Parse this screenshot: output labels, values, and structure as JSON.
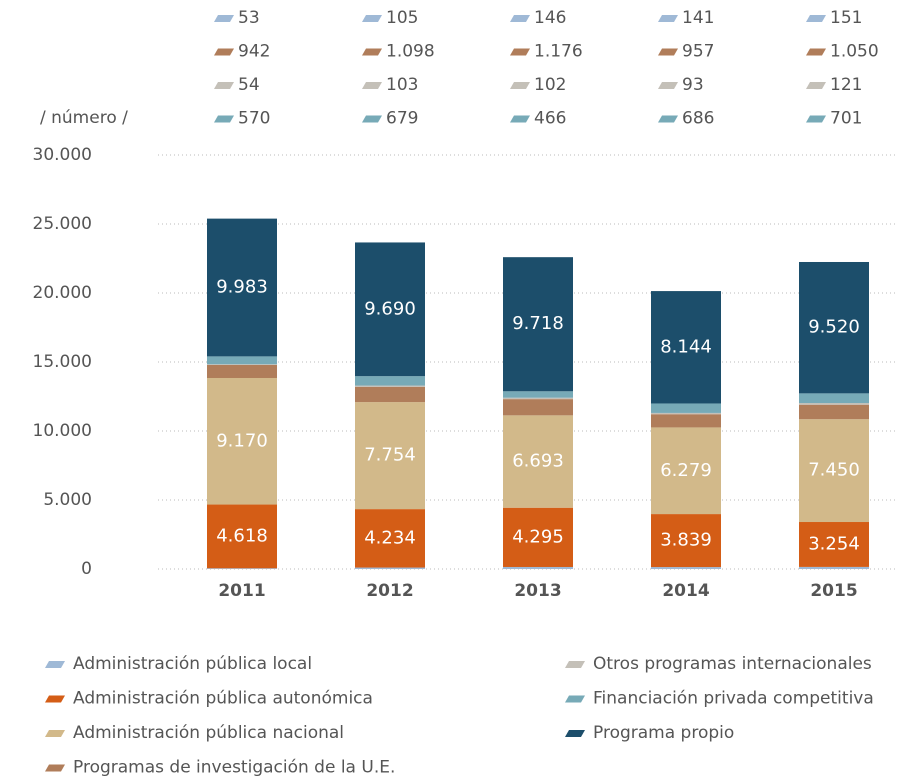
{
  "chart_data": {
    "type": "stacked_bar",
    "y_label": "/ número /",
    "categories": [
      "2011",
      "2012",
      "2013",
      "2014",
      "2015"
    ],
    "ylim": [
      0,
      30000
    ],
    "yticks": [
      0,
      {
        "value": 5000,
        "label": "5.000"
      },
      {
        "value": 10000,
        "label": "10.000"
      },
      {
        "value": 15000,
        "label": "15.000"
      },
      {
        "value": 20000,
        "label": "20.000"
      },
      {
        "value": 25000,
        "label": "25.000"
      },
      {
        "value": 30000,
        "label": "30.000"
      }
    ],
    "grid": true,
    "series": [
      {
        "name": "Administración pública local",
        "color": "#9fb9d6",
        "values": [
          53,
          105,
          146,
          141,
          151
        ],
        "value_labels": [
          "53",
          "105",
          "146",
          "141",
          "151"
        ]
      },
      {
        "name": "Administración pública autonómica",
        "color": "#d45d16",
        "values": [
          4618,
          4234,
          4295,
          3839,
          3254
        ],
        "value_labels": [
          "4.618",
          "4.234",
          "4.295",
          "3.839",
          "3.254"
        ]
      },
      {
        "name": "Administración pública nacional",
        "color": "#d2b98a",
        "values": [
          9170,
          7754,
          6693,
          6279,
          7450
        ],
        "value_labels": [
          "9.170",
          "7.754",
          "6.693",
          "6.279",
          "7.450"
        ]
      },
      {
        "name": "Programas de investigación de la U.E.",
        "color": "#b07d5a",
        "values": [
          942,
          1098,
          1176,
          957,
          1050
        ],
        "value_labels": [
          "942",
          "1.098",
          "1.176",
          "957",
          "1.050"
        ]
      },
      {
        "name": "Otros programas internacionales",
        "color": "#c4c0b8",
        "values": [
          54,
          103,
          102,
          93,
          121
        ],
        "value_labels": [
          "54",
          "103",
          "102",
          "93",
          "121"
        ]
      },
      {
        "name": "Financiación privada competitiva",
        "color": "#77aab7",
        "values": [
          570,
          679,
          466,
          686,
          701
        ],
        "value_labels": [
          "570",
          "679",
          "466",
          "686",
          "701"
        ]
      },
      {
        "name": "Programa propio",
        "color": "#1c4e6b",
        "values": [
          9983,
          9690,
          9718,
          8144,
          9520
        ],
        "value_labels": [
          "9.983",
          "9.690",
          "9.718",
          "8.144",
          "9.520"
        ]
      }
    ]
  }
}
